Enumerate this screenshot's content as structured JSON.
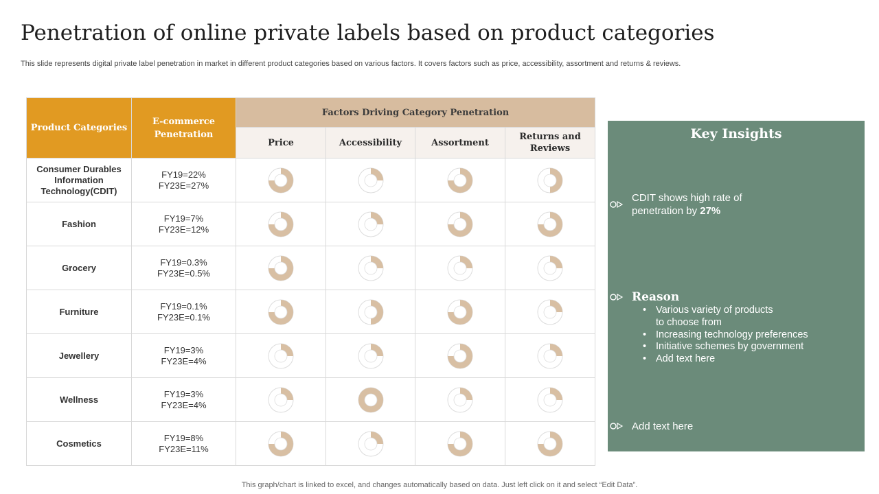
{
  "title": "Penetration of online private labels based on product categories",
  "subtitle": "This slide represents digital private label penetration in market in different product categories based on various factors. It covers factors such as price, accessibility, assortment and returns & reviews.",
  "table": {
    "header_categories": "Product Categories",
    "header_penetration": "E-commerce Penetration",
    "header_factors": "Factors Driving Category Penetration",
    "factors": [
      "Price",
      "Accessibility",
      "Assortment",
      "Returns and Reviews"
    ],
    "colors": {
      "header_orange": "#e19a22",
      "donut_fill": "#d8bfa3",
      "donut_track": "#ffffff",
      "donut_outline": "#dcdcdc"
    },
    "rows": [
      {
        "category": "Consumer Durables Information Technology(CDIT)",
        "penetration_fy19": "FY19=22%",
        "penetration_fy23e": "FY23E=27%",
        "factor_levels": [
          0.75,
          0.25,
          0.75,
          0.5
        ]
      },
      {
        "category": "Fashion",
        "penetration_fy19": "FY19=7%",
        "penetration_fy23e": "FY23E=12%",
        "factor_levels": [
          0.75,
          0.25,
          0.75,
          0.75
        ]
      },
      {
        "category": "Grocery",
        "penetration_fy19": "FY19=0.3%",
        "penetration_fy23e": "FY23E=0.5%",
        "factor_levels": [
          0.75,
          0.25,
          0.25,
          0.25
        ]
      },
      {
        "category": "Furniture",
        "penetration_fy19": "FY19=0.1%",
        "penetration_fy23e": "FY23E=0.1%",
        "factor_levels": [
          0.75,
          0.5,
          0.75,
          0.25
        ]
      },
      {
        "category": "Jewellery",
        "penetration_fy19": "FY19=3%",
        "penetration_fy23e": "FY23E=4%",
        "factor_levels": [
          0.25,
          0.25,
          0.75,
          0.25
        ]
      },
      {
        "category": "Wellness",
        "penetration_fy19": "FY19=3%",
        "penetration_fy23e": "FY23E=4%",
        "factor_levels": [
          0.25,
          1.0,
          0.25,
          0.25
        ]
      },
      {
        "category": "Cosmetics",
        "penetration_fy19": "FY19=8%",
        "penetration_fy23e": "FY23E=11%",
        "factor_levels": [
          0.75,
          0.25,
          0.75,
          0.75
        ]
      }
    ]
  },
  "insights": {
    "title": "Key Insights",
    "point1_text": "CDIT shows high rate of penetration by ",
    "point1_highlight": "27%",
    "reason_title": "Reason",
    "reasons": [
      "Various variety of products to choose from",
      "Increasing technology preferences",
      "Initiative  schemes by government",
      "Add text here"
    ],
    "point3_text": "Add text here",
    "panel_color": "#6b8b7a"
  },
  "footer": "This graph/chart is linked to excel,  and changes automatically based on data. Just left click on it and select “Edit Data”."
}
